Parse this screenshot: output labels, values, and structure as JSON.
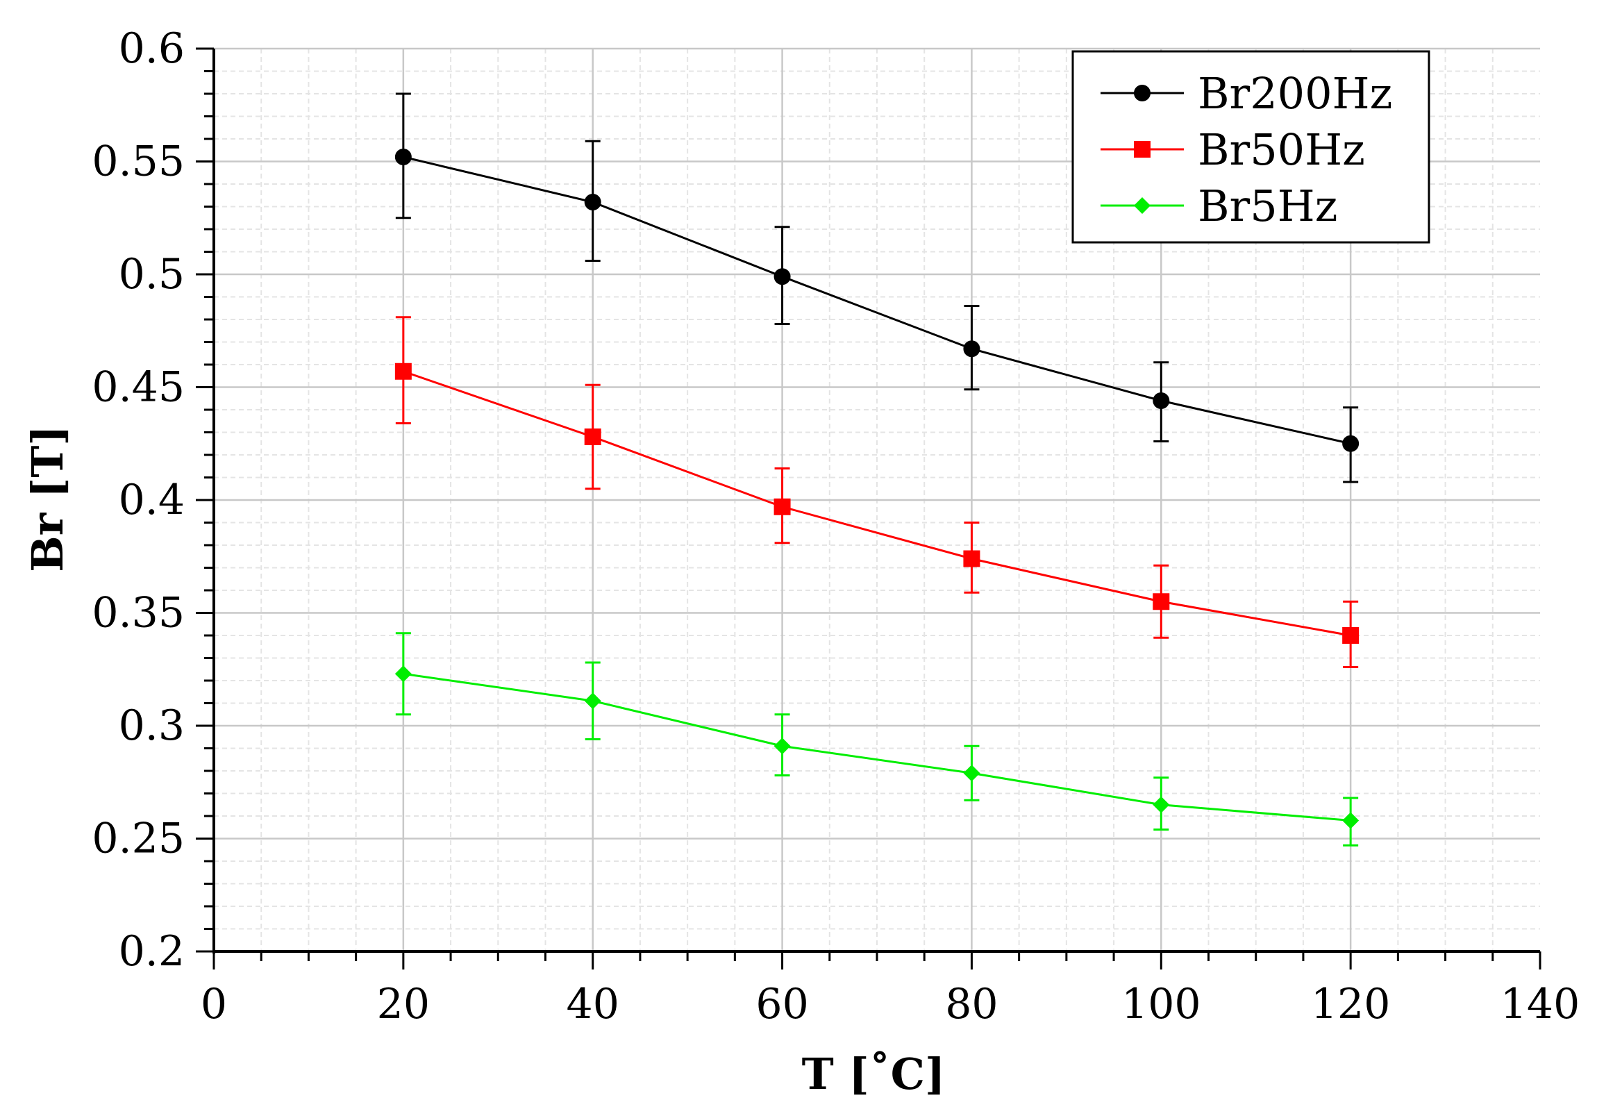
{
  "chart_data": {
    "type": "line",
    "title": "",
    "xlabel": "T [˚C]",
    "ylabel": "Br [T]",
    "xlim": [
      0,
      140
    ],
    "ylim": [
      0.2,
      0.6
    ],
    "x_ticks": [
      0,
      20,
      40,
      60,
      80,
      100,
      120,
      140
    ],
    "x_tick_labels": [
      "0",
      "20",
      "40",
      "60",
      "80",
      "100",
      "120",
      "140"
    ],
    "y_ticks": [
      0.2,
      0.25,
      0.3,
      0.35,
      0.4,
      0.45,
      0.5,
      0.55,
      0.6
    ],
    "y_tick_labels": [
      "0.2",
      "0.25",
      "0.3",
      "0.35",
      "0.4",
      "0.45",
      "0.5",
      "0.55",
      "0.6"
    ],
    "grid": true,
    "legend_position": "top-right",
    "x": [
      20,
      40,
      60,
      80,
      100,
      120
    ],
    "series": [
      {
        "name": "Br200Hz",
        "color": "#000000",
        "marker": "circle",
        "values": [
          0.552,
          0.532,
          0.499,
          0.467,
          0.444,
          0.425
        ],
        "err_upper": [
          0.58,
          0.559,
          0.521,
          0.486,
          0.461,
          0.441
        ],
        "err_lower": [
          0.525,
          0.506,
          0.478,
          0.449,
          0.426,
          0.408
        ]
      },
      {
        "name": "Br50Hz",
        "color": "#ff0000",
        "marker": "square",
        "values": [
          0.457,
          0.428,
          0.397,
          0.374,
          0.355,
          0.34
        ],
        "err_upper": [
          0.481,
          0.451,
          0.414,
          0.39,
          0.371,
          0.355
        ],
        "err_lower": [
          0.434,
          0.405,
          0.381,
          0.359,
          0.339,
          0.326
        ]
      },
      {
        "name": "Br5Hz",
        "color": "#00ee00",
        "marker": "diamond",
        "values": [
          0.323,
          0.311,
          0.291,
          0.279,
          0.265,
          0.258
        ],
        "err_upper": [
          0.341,
          0.328,
          0.305,
          0.291,
          0.277,
          0.268
        ],
        "err_lower": [
          0.305,
          0.294,
          0.278,
          0.267,
          0.254,
          0.247
        ]
      }
    ]
  }
}
